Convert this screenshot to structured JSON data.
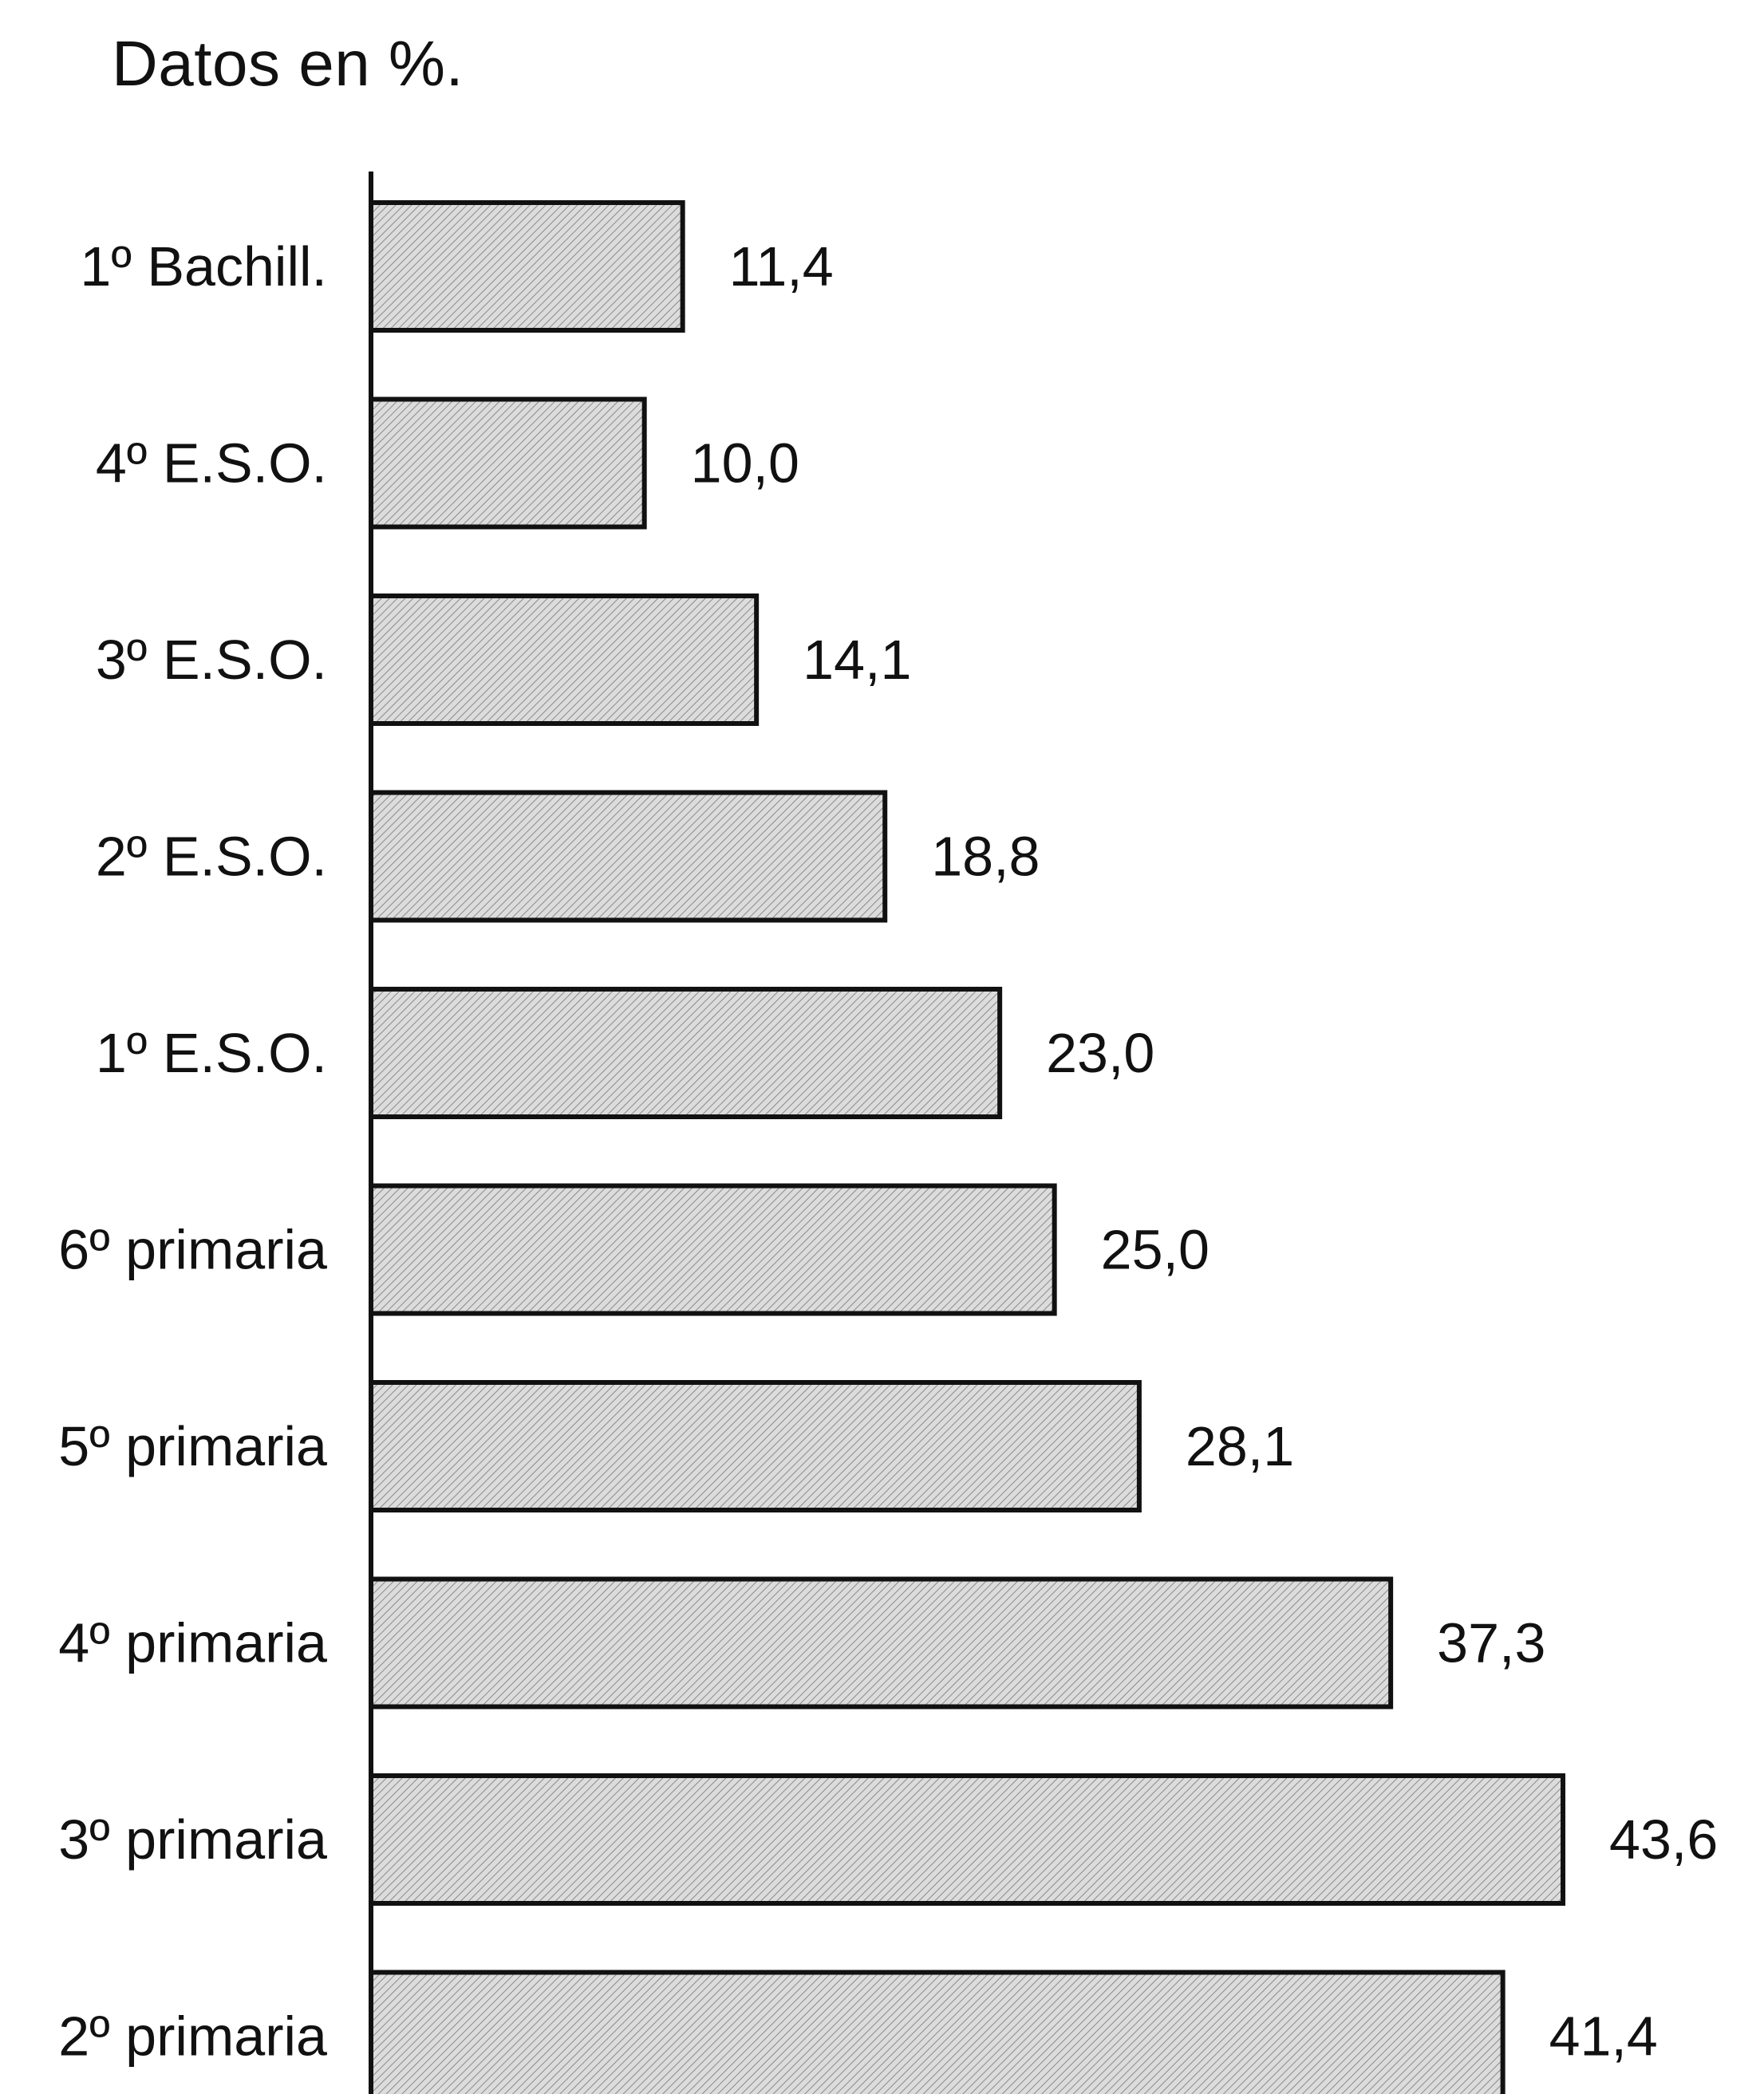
{
  "note": "Datos en %.",
  "chart_data": {
    "type": "bar",
    "orientation": "horizontal",
    "title": "",
    "xlabel": "",
    "ylabel": "",
    "categories": [
      "1º Bachill.",
      "4º E.S.O.",
      "3º E.S.O.",
      "2º E.S.O.",
      "1º E.S.O.",
      "6º primaria",
      "5º primaria",
      "4º primaria",
      "3º primaria",
      "2º primaria"
    ],
    "values": [
      11.4,
      10.0,
      14.1,
      18.8,
      23.0,
      25.0,
      28.1,
      37.3,
      43.6,
      41.4
    ],
    "value_labels": [
      "11,4",
      "10,0",
      "14,1",
      "18,8",
      "23,0",
      "25,0",
      "28,1",
      "37,3",
      "43,6",
      "41,4"
    ],
    "xlim": [
      0,
      45
    ],
    "grid": false,
    "legend": "none",
    "bar_fill": "#d2d2d2",
    "bar_stroke": "#111111"
  }
}
